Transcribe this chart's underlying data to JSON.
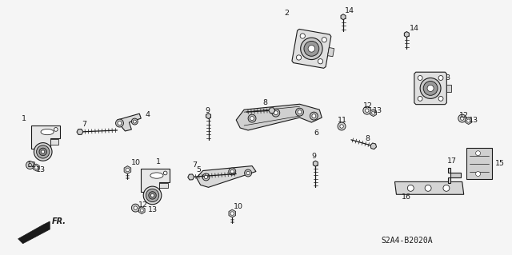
{
  "bg_color": "#f5f5f5",
  "line_color": "#1a1a1a",
  "diagram_code": "S2A4-B2020A",
  "fig_width": 6.4,
  "fig_height": 3.19,
  "dpi": 100
}
